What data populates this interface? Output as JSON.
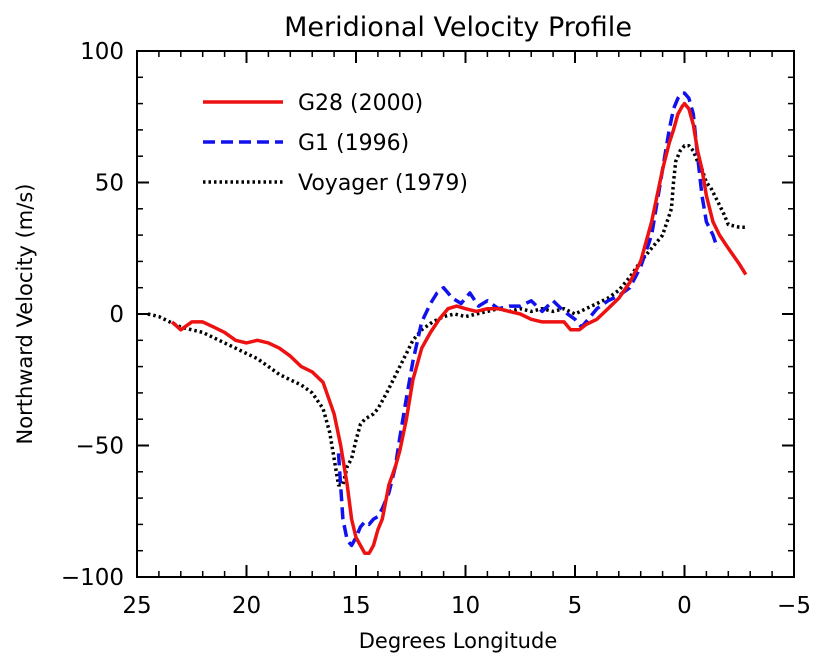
{
  "chart_data": {
    "type": "line",
    "title": "Meridional Velocity Profile",
    "xlabel": "Degrees Longitude",
    "ylabel": "Northward Velocity (m/s)",
    "xlim": [
      25,
      -5
    ],
    "ylim": [
      -100,
      100
    ],
    "x_reversed": true,
    "x_ticks": [
      25,
      20,
      15,
      10,
      5,
      0,
      -5
    ],
    "x_tick_labels": [
      "25",
      "20",
      "15",
      "10",
      "5",
      "0",
      "−5"
    ],
    "y_ticks": [
      -100,
      -50,
      0,
      50,
      100
    ],
    "y_tick_labels": [
      "−100",
      "−50",
      "0",
      "50",
      "100"
    ],
    "grid": false,
    "legend_position": "top-left",
    "series": [
      {
        "name": "G28 (2000)",
        "color": "#ee1111",
        "style": "solid",
        "x": [
          23.4,
          23.0,
          22.5,
          22.0,
          21.5,
          21.0,
          20.5,
          20.0,
          19.5,
          19.0,
          18.5,
          18.0,
          17.5,
          17.0,
          16.5,
          16.0,
          15.7,
          15.4,
          15.2,
          15.0,
          14.8,
          14.6,
          14.4,
          14.2,
          14.0,
          13.8,
          13.5,
          13.2,
          13.0,
          12.7,
          12.4,
          12.0,
          11.6,
          11.2,
          10.8,
          10.4,
          10.0,
          9.5,
          9.0,
          8.5,
          8.0,
          7.5,
          7.0,
          6.5,
          6.0,
          5.5,
          5.2,
          4.8,
          4.5,
          4.0,
          3.5,
          3.0,
          2.5,
          2.0,
          1.5,
          1.0,
          0.7,
          0.5,
          0.3,
          0.1,
          0.0,
          -0.2,
          -0.4,
          -0.6,
          -0.8,
          -1.0,
          -1.3,
          -1.6,
          -2.0,
          -2.5,
          -2.8
        ],
        "y": [
          -3,
          -6,
          -3,
          -3,
          -5,
          -7,
          -10,
          -11,
          -10,
          -11,
          -13,
          -16,
          -20,
          -22,
          -26,
          -38,
          -50,
          -65,
          -78,
          -85,
          -88,
          -91,
          -91,
          -88,
          -82,
          -78,
          -65,
          -58,
          -52,
          -40,
          -25,
          -13,
          -7,
          -2,
          2,
          3,
          2,
          1,
          2,
          2,
          1,
          0,
          -2,
          -3,
          -3,
          -3,
          -6,
          -6,
          -4,
          -2,
          2,
          6,
          12,
          20,
          35,
          55,
          65,
          70,
          76,
          79,
          80,
          78,
          72,
          62,
          55,
          45,
          35,
          30,
          25,
          19,
          15
        ]
      },
      {
        "name": "G1 (1996)",
        "color": "#1111ee",
        "style": "dashed",
        "x": [
          15.8,
          15.6,
          15.4,
          15.2,
          15.0,
          14.8,
          14.6,
          14.4,
          14.2,
          14.0,
          13.8,
          13.5,
          13.2,
          13.0,
          12.7,
          12.4,
          12.0,
          11.6,
          11.3,
          11.0,
          10.6,
          10.2,
          9.8,
          9.4,
          9.0,
          8.5,
          8.0,
          7.5,
          7.0,
          6.5,
          6.0,
          5.5,
          5.0,
          4.7,
          4.5,
          4.0,
          3.5,
          3.0,
          2.5,
          2.0,
          1.5,
          1.0,
          0.7,
          0.5,
          0.3,
          0.1,
          0.0,
          -0.2,
          -0.4,
          -0.6,
          -0.8,
          -1.0,
          -1.3,
          -1.5
        ],
        "y": [
          -53,
          -78,
          -86,
          -88,
          -85,
          -81,
          -79,
          -80,
          -78,
          -77,
          -74,
          -68,
          -58,
          -47,
          -32,
          -18,
          -3,
          4,
          8,
          10,
          6,
          4,
          8,
          3,
          5,
          2,
          3,
          3,
          5,
          1,
          5,
          1,
          -2,
          -5,
          -3,
          2,
          5,
          7,
          10,
          18,
          30,
          55,
          70,
          78,
          82,
          84,
          84,
          82,
          76,
          60,
          45,
          35,
          30,
          25
        ]
      },
      {
        "name": "Voyager (1979)",
        "color": "#000000",
        "style": "dotted",
        "x": [
          24.5,
          24.0,
          23.5,
          23.0,
          22.5,
          22.0,
          21.5,
          21.0,
          20.5,
          20.0,
          19.5,
          19.0,
          18.5,
          18.0,
          17.5,
          17.0,
          16.5,
          16.2,
          16.0,
          15.8,
          15.6,
          15.4,
          15.2,
          15.0,
          14.8,
          14.6,
          14.4,
          14.2,
          14.0,
          13.8,
          13.6,
          13.3,
          13.0,
          12.7,
          12.4,
          12.0,
          11.5,
          11.0,
          10.5,
          10.0,
          9.5,
          9.0,
          8.5,
          8.0,
          7.5,
          7.0,
          6.5,
          6.0,
          5.5,
          5.0,
          4.5,
          4.0,
          3.5,
          3.0,
          2.5,
          2.0,
          1.5,
          1.0,
          0.8,
          0.6,
          0.5,
          0.4,
          0.2,
          0.0,
          -0.2,
          -0.4,
          -0.6,
          -0.8,
          -1.0,
          -1.2,
          -1.5,
          -1.8,
          -2.0,
          -2.5,
          -2.8
        ],
        "y": [
          0,
          -1,
          -3,
          -5,
          -6,
          -7,
          -9,
          -11,
          -13,
          -15,
          -17,
          -20,
          -23,
          -25,
          -27,
          -30,
          -36,
          -45,
          -55,
          -65,
          -65,
          -58,
          -55,
          -48,
          -42,
          -40,
          -39,
          -38,
          -36,
          -33,
          -30,
          -25,
          -20,
          -15,
          -10,
          -6,
          -3,
          -1,
          0,
          -1,
          0,
          1,
          2,
          1,
          2,
          1,
          2,
          1,
          2,
          0,
          2,
          4,
          6,
          9,
          14,
          20,
          25,
          30,
          35,
          40,
          50,
          58,
          62,
          64,
          64,
          62,
          58,
          55,
          50,
          48,
          43,
          38,
          34,
          33,
          33
        ]
      }
    ]
  }
}
